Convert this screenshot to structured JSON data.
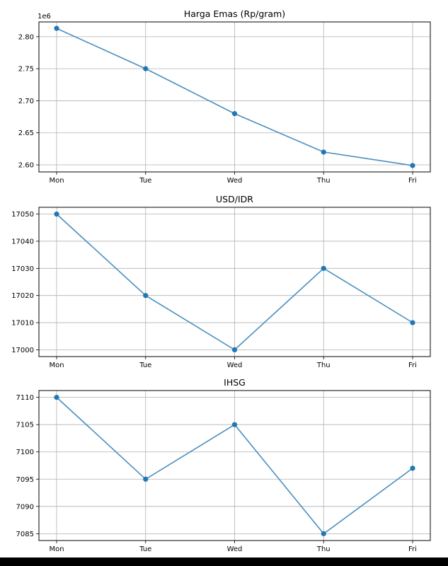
{
  "chart_data": [
    {
      "type": "line",
      "title": "Harga Emas (Rp/gram)",
      "scale_label": "1e6",
      "categories": [
        "Mon",
        "Tue",
        "Wed",
        "Thu",
        "Fri"
      ],
      "values": [
        2.813,
        2.75,
        2.68,
        2.62,
        2.599
      ],
      "yticks": [
        2.6,
        2.65,
        2.7,
        2.75,
        2.8
      ],
      "ytick_labels": [
        "2.60",
        "2.65",
        "2.70",
        "2.75",
        "2.80"
      ],
      "ylim": [
        2.589,
        2.823
      ],
      "grid": true,
      "color": "#1f77b4"
    },
    {
      "type": "line",
      "title": "USD/IDR",
      "categories": [
        "Mon",
        "Tue",
        "Wed",
        "Thu",
        "Fri"
      ],
      "values": [
        17050,
        17020,
        17000,
        17030,
        17010
      ],
      "yticks": [
        17000,
        17010,
        17020,
        17030,
        17040,
        17050
      ],
      "ytick_labels": [
        "17000",
        "17010",
        "17020",
        "17030",
        "17040",
        "17050"
      ],
      "ylim": [
        16997.5,
        17052.5
      ],
      "grid": true,
      "color": "#1f77b4"
    },
    {
      "type": "line",
      "title": "IHSG",
      "categories": [
        "Mon",
        "Tue",
        "Wed",
        "Thu",
        "Fri"
      ],
      "values": [
        7110,
        7095,
        7105,
        7085,
        7097
      ],
      "yticks": [
        7085,
        7090,
        7095,
        7100,
        7105,
        7110
      ],
      "ytick_labels": [
        "7085",
        "7090",
        "7095",
        "7100",
        "7105",
        "7110"
      ],
      "ylim": [
        7083.75,
        7111.25
      ],
      "grid": true,
      "color": "#1f77b4"
    }
  ]
}
